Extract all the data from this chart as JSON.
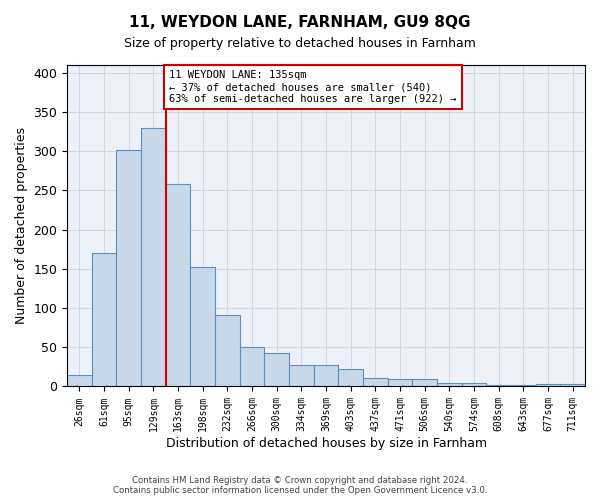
{
  "title": "11, WEYDON LANE, FARNHAM, GU9 8QG",
  "subtitle": "Size of property relative to detached houses in Farnham",
  "xlabel": "Distribution of detached houses by size in Farnham",
  "ylabel": "Number of detached properties",
  "bin_labels": [
    "26sqm",
    "61sqm",
    "95sqm",
    "129sqm",
    "163sqm",
    "198sqm",
    "232sqm",
    "266sqm",
    "300sqm",
    "334sqm",
    "369sqm",
    "403sqm",
    "437sqm",
    "471sqm",
    "506sqm",
    "540sqm",
    "574sqm",
    "608sqm",
    "643sqm",
    "677sqm",
    "711sqm"
  ],
  "bar_heights": [
    14,
    170,
    302,
    330,
    258,
    152,
    91,
    50,
    43,
    27,
    27,
    22,
    11,
    10,
    9,
    4,
    4,
    2,
    2,
    3,
    3
  ],
  "bar_color": "#c8d8e8",
  "bar_edge_color": "#5a8fc0",
  "grid_color": "#d0d8e8",
  "background_color": "#eef2f8",
  "red_line_x": 3.5,
  "annotation_text": "11 WEYDON LANE: 135sqm\n← 37% of detached houses are smaller (540)\n63% of semi-detached houses are larger (922) →",
  "annotation_box_color": "white",
  "annotation_box_edge": "#cc0000",
  "red_line_color": "#cc0000",
  "footnote": "Contains HM Land Registry data © Crown copyright and database right 2024.\nContains public sector information licensed under the Open Government Licence v3.0.",
  "ylim": [
    0,
    410
  ],
  "yticks": [
    0,
    50,
    100,
    150,
    200,
    250,
    300,
    350,
    400
  ]
}
